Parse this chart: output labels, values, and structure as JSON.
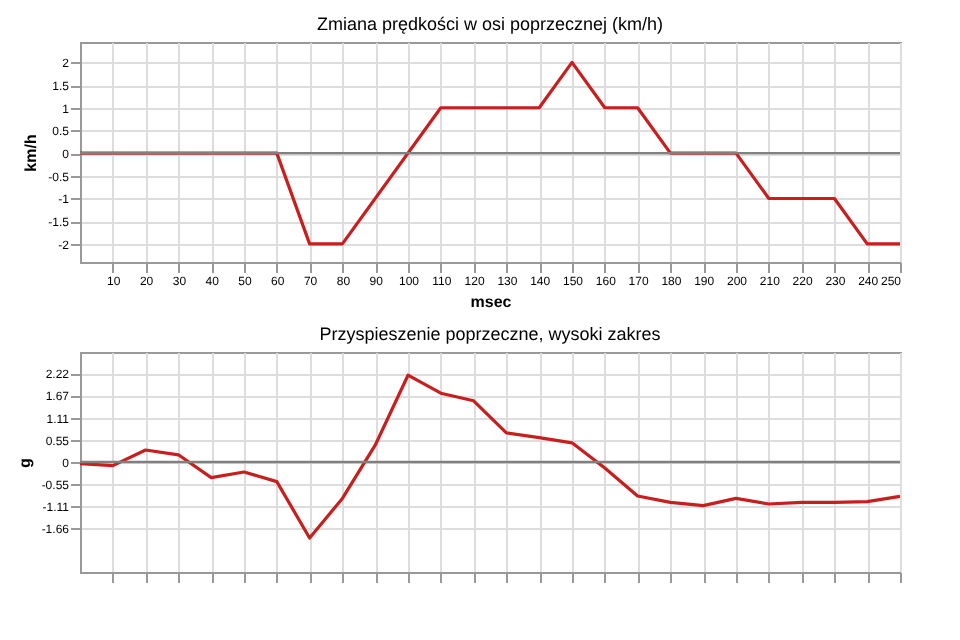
{
  "chart_data": [
    {
      "type": "line",
      "title": "Zmiana prędkości w osi poprzecznej (km/h)",
      "xlabel": "msec",
      "ylabel": "km/h",
      "x": [
        0,
        60,
        70,
        80,
        110,
        140,
        150,
        160,
        170,
        180,
        200,
        210,
        230,
        240,
        250
      ],
      "series": [
        {
          "color": "#c81e1e",
          "values": [
            0,
            0,
            -2,
            -2,
            1,
            1,
            2,
            1,
            1,
            0,
            0,
            -1,
            -1,
            -2,
            -2
          ]
        }
      ],
      "xlim": [
        0,
        250
      ],
      "xticks": [
        10,
        20,
        30,
        40,
        50,
        60,
        70,
        80,
        90,
        100,
        110,
        120,
        130,
        140,
        150,
        160,
        170,
        180,
        190,
        200,
        210,
        220,
        230,
        240,
        250
      ],
      "ylim": [
        -2.4,
        2.45
      ],
      "yticks": [
        -2,
        -1.5,
        -1,
        -0.5,
        0,
        0.5,
        1,
        1.5,
        2
      ],
      "grid": true,
      "ref_lines": [
        {
          "axis": "y",
          "value": 0,
          "color": "#808080"
        }
      ]
    },
    {
      "type": "line",
      "title": "Przyspieszenie poprzeczne, wysoki zakres",
      "ylabel": "g",
      "x": [
        0,
        10,
        20,
        30,
        40,
        50,
        60,
        70,
        80,
        90,
        100,
        110,
        120,
        130,
        140,
        150,
        160,
        170,
        180,
        190,
        200,
        210,
        220,
        230,
        240,
        250
      ],
      "series": [
        {
          "color": "#c81e1e",
          "values": [
            -0.04,
            -0.09,
            0.3,
            0.18,
            -0.39,
            -0.25,
            -0.49,
            -1.9,
            -0.91,
            0.42,
            2.17,
            1.72,
            1.53,
            0.73,
            0.61,
            0.48,
            -0.15,
            -0.85,
            -1.01,
            -1.09,
            -0.91,
            -1.05,
            -1.01,
            -1.01,
            -0.99,
            -0.86
          ]
        }
      ],
      "xlim": [
        0,
        250
      ],
      "xticks": [
        10,
        20,
        30,
        40,
        50,
        60,
        70,
        80,
        90,
        100,
        110,
        120,
        130,
        140,
        150,
        160,
        170,
        180,
        190,
        200,
        210,
        220,
        230,
        240,
        250
      ],
      "ylim": [
        -2.75,
        2.75
      ],
      "yticks": [
        -1.66,
        -1.11,
        -0.55,
        0,
        0.55,
        1.11,
        1.67,
        2.22
      ],
      "grid": true,
      "tick_labels": "y",
      "ref_lines": [
        {
          "axis": "y",
          "value": 0,
          "color": "#808080"
        }
      ]
    }
  ]
}
